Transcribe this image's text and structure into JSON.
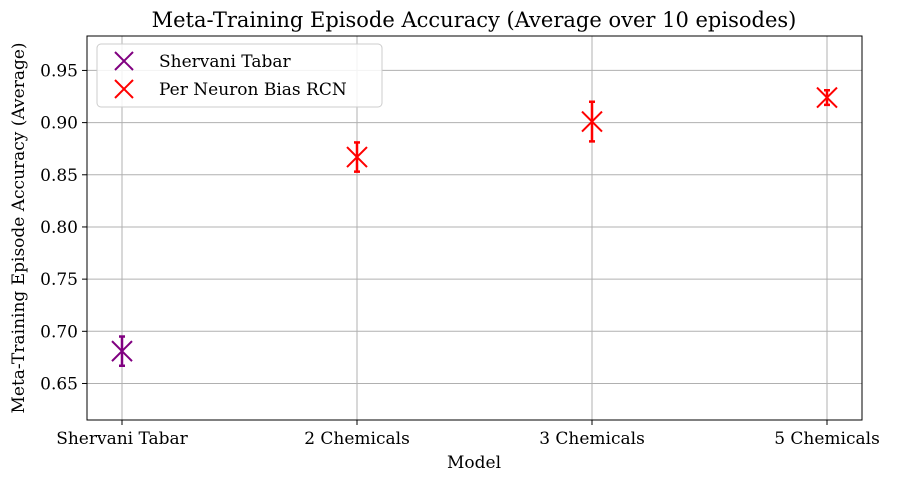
{
  "chart_data": {
    "type": "scatter",
    "title": "Meta-Training Episode Accuracy (Average over 10 episodes)",
    "xlabel": "Model",
    "ylabel": "Meta-Training Episode Accuracy (Average)",
    "categories": [
      "Shervani Tabar",
      "2 Chemicals",
      "3 Chemicals",
      "5 Chemicals"
    ],
    "ylim": [
      0.615,
      0.983
    ],
    "yticks": [
      "0.65",
      "0.70",
      "0.75",
      "0.80",
      "0.85",
      "0.90",
      "0.95"
    ],
    "grid": true,
    "legend_position": "top-left",
    "series": [
      {
        "name": "Shervani Tabar",
        "color": "#800080",
        "marker": "x",
        "points": [
          {
            "category": "Shervani Tabar",
            "value": 0.681,
            "error": 0.014
          }
        ]
      },
      {
        "name": "Per Neuron Bias RCN",
        "color": "#ff0000",
        "marker": "x",
        "points": [
          {
            "category": "2 Chemicals",
            "value": 0.867,
            "error": 0.014
          },
          {
            "category": "3 Chemicals",
            "value": 0.901,
            "error": 0.019
          },
          {
            "category": "5 Chemicals",
            "value": 0.924,
            "error": 0.007
          }
        ]
      }
    ]
  }
}
